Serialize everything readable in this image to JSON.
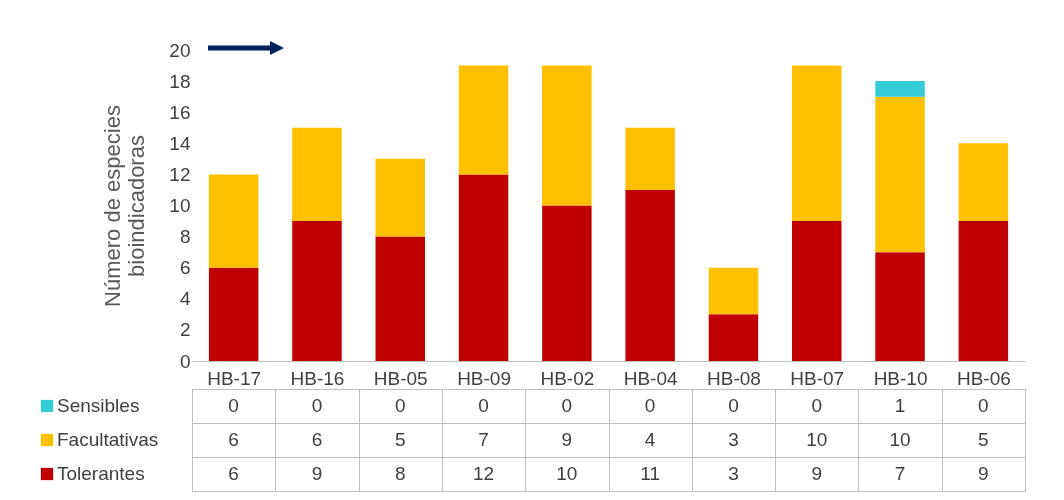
{
  "chart_data": {
    "type": "bar",
    "stacked": true,
    "ylabel": "Número de especies bioindicadoras",
    "categories": [
      "HB-17",
      "HB-16",
      "HB-05",
      "HB-09",
      "HB-02",
      "HB-04",
      "HB-08",
      "HB-07",
      "HB-10",
      "HB-06"
    ],
    "series": [
      {
        "name": "Tolerantes",
        "color": "#c00000",
        "values": [
          6,
          9,
          8,
          12,
          10,
          11,
          3,
          9,
          7,
          9
        ]
      },
      {
        "name": "Facultativas",
        "color": "#ffc000",
        "values": [
          6,
          6,
          5,
          7,
          9,
          4,
          3,
          10,
          10,
          5
        ]
      },
      {
        "name": "Sensibles",
        "color": "#33ccd6",
        "values": [
          0,
          0,
          0,
          0,
          0,
          0,
          0,
          0,
          1,
          0
        ]
      }
    ],
    "ylim": [
      0,
      20
    ],
    "yticks": [
      0,
      2,
      4,
      6,
      8,
      10,
      12,
      14,
      16,
      18,
      20
    ],
    "data_labels": true,
    "legend": "bottom"
  }
}
